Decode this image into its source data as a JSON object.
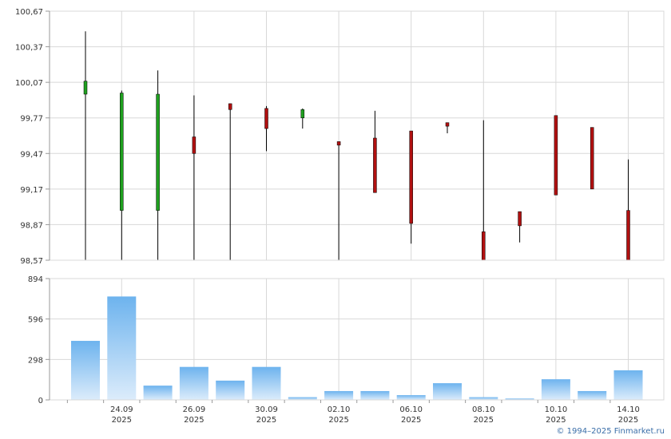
{
  "copyright": "© 1994–2025 Finmarket.ru",
  "colors": {
    "up": "#1fa01f",
    "down": "#b01010",
    "wick": "#000000",
    "grid": "#d8d8d8",
    "axis": "#999999",
    "volume_top": "#6db3ee",
    "volume_bottom": "#dcecfb"
  },
  "chart_data": [
    {
      "type": "candlestick",
      "title": "",
      "ylim": [
        98.57,
        100.67
      ],
      "y_ticks": [
        "100,67",
        "100,37",
        "100,07",
        "99,77",
        "99,47",
        "99,17",
        "98,87",
        "98,57"
      ],
      "y_tick_values": [
        100.67,
        100.37,
        100.07,
        99.77,
        99.47,
        99.17,
        98.87,
        98.57
      ],
      "candles": [
        {
          "open": 99.97,
          "close": 100.08,
          "high": 100.5,
          "low": 98.57
        },
        {
          "open": 98.99,
          "close": 99.98,
          "high": 100.0,
          "low": 98.57
        },
        {
          "open": 98.99,
          "close": 99.97,
          "high": 100.17,
          "low": 98.57
        },
        {
          "open": 99.61,
          "close": 99.47,
          "high": 99.96,
          "low": 98.57
        },
        {
          "open": 99.89,
          "close": 99.84,
          "high": 99.89,
          "low": 98.57
        },
        {
          "open": 99.85,
          "close": 99.68,
          "high": 99.87,
          "low": 99.49
        },
        {
          "open": 99.77,
          "close": 99.84,
          "high": 99.85,
          "low": 99.68
        },
        {
          "open": 99.57,
          "close": 99.54,
          "high": 99.57,
          "low": 98.57
        },
        {
          "open": 99.6,
          "close": 99.14,
          "high": 99.83,
          "low": 99.14
        },
        {
          "open": 99.66,
          "close": 98.88,
          "high": 99.66,
          "low": 98.71
        },
        {
          "open": 99.73,
          "close": 99.7,
          "high": 99.73,
          "low": 99.64
        },
        {
          "open": 98.81,
          "close": 98.57,
          "high": 99.75,
          "low": 98.57
        },
        {
          "open": 98.98,
          "close": 98.86,
          "high": 98.98,
          "low": 98.72
        },
        {
          "open": 99.79,
          "close": 99.12,
          "high": 99.79,
          "low": 99.12
        },
        {
          "open": 99.69,
          "close": 99.17,
          "high": 99.69,
          "low": 99.17
        },
        {
          "open": 98.99,
          "close": 98.57,
          "high": 99.42,
          "low": 98.57
        }
      ]
    },
    {
      "type": "bar",
      "title": "",
      "ylim": [
        0,
        894
      ],
      "y_ticks": [
        "894",
        "596",
        "298",
        "0"
      ],
      "y_tick_values": [
        894,
        596,
        298,
        0
      ],
      "values": [
        435,
        762,
        105,
        243,
        142,
        243,
        20,
        65,
        65,
        35,
        123,
        20,
        10,
        152,
        65,
        218
      ]
    }
  ],
  "x_axis": {
    "date_labels": [
      "24.09",
      "26.09",
      "30.09",
      "02.10",
      "06.10",
      "08.10",
      "10.10",
      "14.10"
    ],
    "year_labels": [
      "2025",
      "2025",
      "2025",
      "2025",
      "2025",
      "2025",
      "2025",
      "2025"
    ],
    "label_slots": [
      1,
      3,
      5,
      7,
      9,
      11,
      13,
      15
    ]
  }
}
